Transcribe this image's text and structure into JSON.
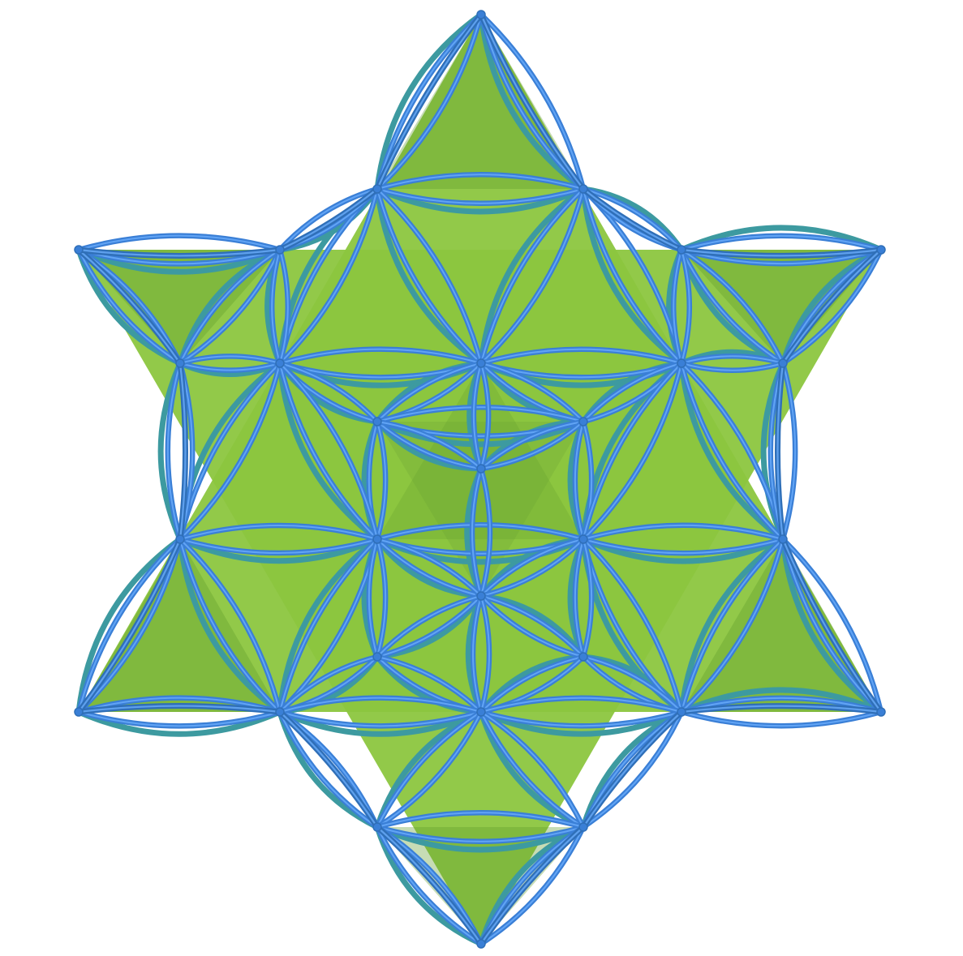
{
  "figure": {
    "subject": "star-tetrahedron-lattice",
    "colors": {
      "background": "#ffffff",
      "face_light": "#8cc63f",
      "face_dark": "#5e9b2a",
      "face_inner": "#79b23a",
      "tube": "#3a7fd6",
      "tube_highlight": "#6fb0ff",
      "tube_shadow": "#2f6fb8",
      "tube_back": "#3d9aa0"
    },
    "icons": [
      "star-of-david-shape",
      "flower-of-life-arc-lattice"
    ]
  }
}
